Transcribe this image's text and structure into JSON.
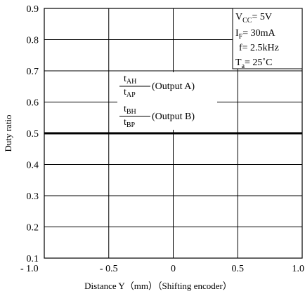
{
  "chart_data": {
    "type": "line",
    "title": "",
    "xlabel": "Distance Y（mm）（Shifting encoder）",
    "ylabel": "Duty ratio",
    "xlim": [
      -1.0,
      1.0
    ],
    "ylim": [
      0.1,
      0.9
    ],
    "grid": true,
    "x_ticks": [
      -1.0,
      -0.5,
      0,
      0.5,
      1.0
    ],
    "x_tick_labels": [
      "- 1.0",
      "- 0.5",
      "0",
      "0.5",
      "1.0"
    ],
    "y_ticks": [
      0.1,
      0.2,
      0.3,
      0.4,
      0.5,
      0.6,
      0.7,
      0.8,
      0.9
    ],
    "y_tick_labels": [
      "0.1",
      "0.2",
      "0.3",
      "0.4",
      "0.5",
      "0.6",
      "0.7",
      "0.8",
      "0.9"
    ],
    "series": [
      {
        "x": [
          -1.0,
          1.0
        ],
        "y": [
          0.5,
          0.5
        ]
      }
    ],
    "annotations": [
      {
        "numerator": {
          "base": "t",
          "sub": "AH"
        },
        "denominator": {
          "base": "t",
          "sub": "AP"
        },
        "text": "(Output A)"
      },
      {
        "numerator": {
          "base": "t",
          "sub": "BH"
        },
        "denominator": {
          "base": "t",
          "sub": "BP"
        },
        "text": "(Output B)"
      }
    ],
    "conditions": [
      {
        "base": "V",
        "sub": "CC",
        "text": "= 5V"
      },
      {
        "base": "I",
        "sub": "F",
        "text": "= 30mA"
      },
      {
        "base": "",
        "sub": "",
        "text": "f= 2.5kHz"
      },
      {
        "base": "T",
        "sub": "a",
        "text": "= 25˚C"
      }
    ]
  }
}
